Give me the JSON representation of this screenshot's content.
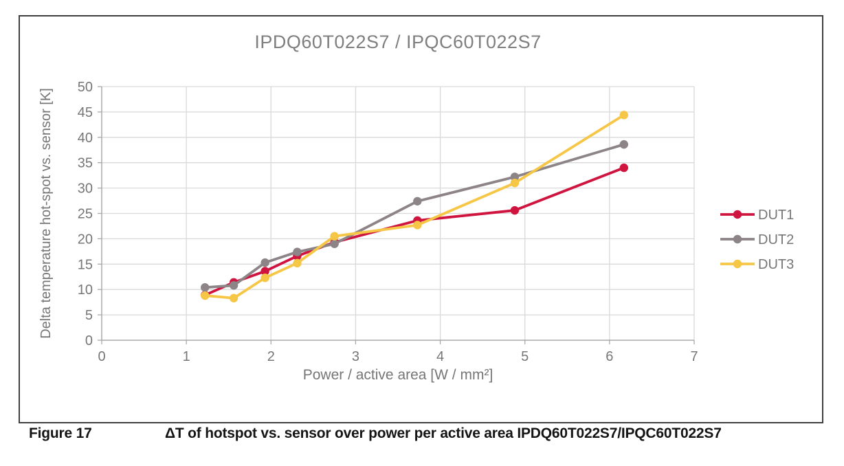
{
  "figure": {
    "caption_label": "Figure 17",
    "caption_text": "ΔT of hotspot vs. sensor over power per active area IPDQ60T022S7/IPQC60T022S7"
  },
  "chart_data": {
    "type": "line",
    "title": "IPDQ60T022S7 / IPQC60T022S7",
    "xlabel": "Power / active area [W / mm²]",
    "ylabel": "Delta temperature hot-spot vs. sensor [K]",
    "xlim": [
      0,
      7
    ],
    "ylim": [
      0,
      50
    ],
    "x_ticks": [
      0,
      1,
      2,
      3,
      4,
      5,
      6,
      7
    ],
    "y_ticks": [
      0,
      5,
      10,
      15,
      20,
      25,
      30,
      35,
      40,
      45,
      50
    ],
    "grid": true,
    "legend_position": "right-outside",
    "x": [
      1.22,
      1.56,
      1.93,
      2.31,
      2.75,
      3.73,
      4.88,
      6.17
    ],
    "series": [
      {
        "name": "DUT1",
        "color": "#d01440",
        "values": [
          8.9,
          11.4,
          13.6,
          16.6,
          19.3,
          23.6,
          25.6,
          34.0
        ]
      },
      {
        "name": "DUT2",
        "color": "#8c8487",
        "values": [
          10.4,
          10.8,
          15.3,
          17.4,
          19.0,
          27.4,
          32.2,
          38.6
        ]
      },
      {
        "name": "DUT3",
        "color": "#f6c646",
        "values": [
          8.8,
          8.3,
          12.3,
          15.2,
          20.5,
          22.7,
          31.0,
          44.4
        ]
      }
    ],
    "style_colors": {
      "grid": "#d9d9d9",
      "axis": "#a8a8a8",
      "tick_text": "#767676",
      "title_text": "#7f7f7f",
      "caption_text": "#141414"
    }
  }
}
